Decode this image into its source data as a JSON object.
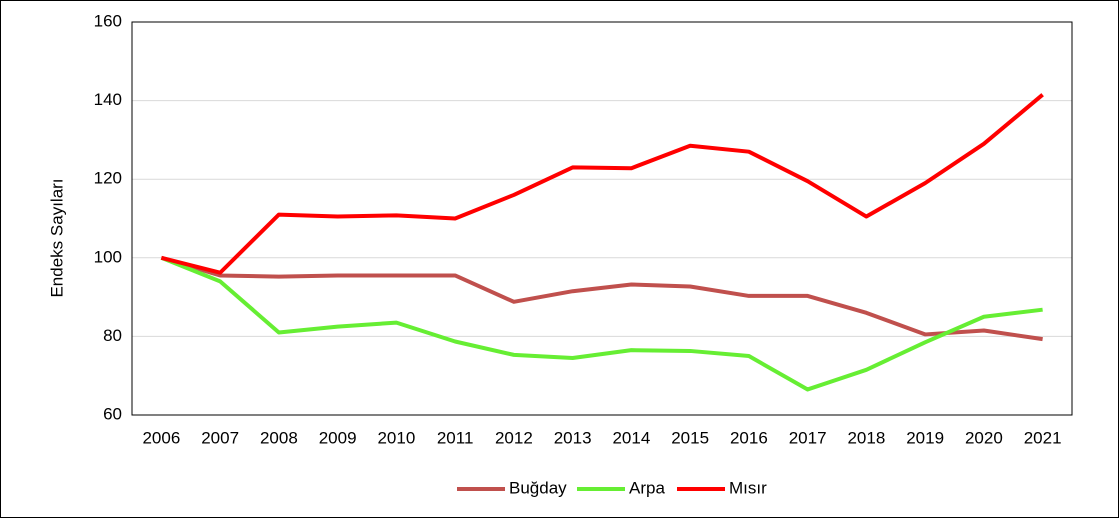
{
  "chart_data": {
    "type": "line",
    "y_label": "Endeks Sayıları",
    "categories": [
      "2006",
      "2007",
      "2008",
      "2009",
      "2010",
      "2011",
      "2012",
      "2013",
      "2014",
      "2015",
      "2016",
      "2017",
      "2018",
      "2019",
      "2020",
      "2021"
    ],
    "series": [
      {
        "name": "Buğday",
        "color": "#c0504d",
        "values": [
          100,
          95.5,
          95.2,
          95.5,
          95.5,
          95.5,
          88.8,
          91.5,
          93.2,
          92.7,
          90.3,
          90.3,
          86,
          80.5,
          81.5,
          79.3
        ]
      },
      {
        "name": "Arpa",
        "color": "#66ee33",
        "values": [
          100,
          94,
          81,
          82.5,
          83.5,
          78.7,
          75.3,
          74.5,
          76.5,
          76.3,
          75,
          66.5,
          71.5,
          78.5,
          85,
          86.8
        ]
      },
      {
        "name": "Mısır",
        "color": "#ff0000",
        "values": [
          100,
          96.2,
          111,
          110.5,
          110.8,
          110,
          116,
          123,
          122.8,
          128.5,
          127,
          119.5,
          110.5,
          119,
          129,
          141.5
        ]
      }
    ],
    "ylim": [
      60,
      160
    ],
    "yticks": [
      60,
      80,
      100,
      120,
      140,
      160
    ],
    "grid": true,
    "legend": "bottom"
  }
}
